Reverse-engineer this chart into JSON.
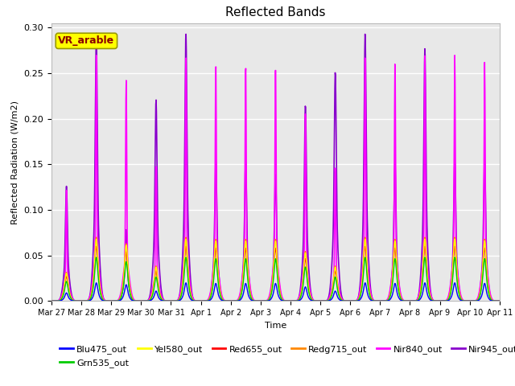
{
  "title": "Reflected Bands",
  "xlabel": "Time",
  "ylabel": "Reflected Radiation (W/m2)",
  "annotation": "VR_arable",
  "annotation_color": "#8B0000",
  "annotation_bg": "#FFFF00",
  "ylim": [
    0,
    0.305
  ],
  "series": {
    "Blu475_out": {
      "color": "#0000FF",
      "lw": 1.0
    },
    "Grn535_out": {
      "color": "#00CC00",
      "lw": 1.0
    },
    "Yel580_out": {
      "color": "#FFFF00",
      "lw": 1.0
    },
    "Red655_out": {
      "color": "#FF0000",
      "lw": 1.0
    },
    "Redg715_out": {
      "color": "#FF8800",
      "lw": 1.0
    },
    "Nir840_out": {
      "color": "#FF00FF",
      "lw": 1.2
    },
    "Nir945_out": {
      "color": "#8800CC",
      "lw": 1.2
    }
  },
  "xtick_labels": [
    "Mar 27",
    "Mar 28",
    "Mar 29",
    "Mar 30",
    "Mar 31",
    "Apr 1",
    "Apr 2",
    "Apr 3",
    "Apr 4",
    "Apr 5",
    "Apr 6",
    "Apr 7",
    "Apr 8",
    "Apr 9",
    "Apr 10",
    "Apr 11"
  ],
  "bg_color": "#E8E8E8",
  "grid_color": "#FFFFFF",
  "fig_bg": "#FFFFFF",
  "peak_factors_nir840": [
    0.45,
    1.0,
    0.9,
    0.55,
    1.0,
    0.97,
    0.97,
    0.97,
    0.78,
    0.55,
    1.0,
    0.97,
    1.0,
    1.0,
    0.97,
    0.5
  ],
  "peak_factors_nir945": [
    0.45,
    1.05,
    0.28,
    0.79,
    1.05,
    0.55,
    0.55,
    0.5,
    0.77,
    0.9,
    1.05,
    0.54,
    0.99,
    0.55,
    0.55,
    0.5
  ],
  "n_days": 15,
  "pts_per_day": 96
}
